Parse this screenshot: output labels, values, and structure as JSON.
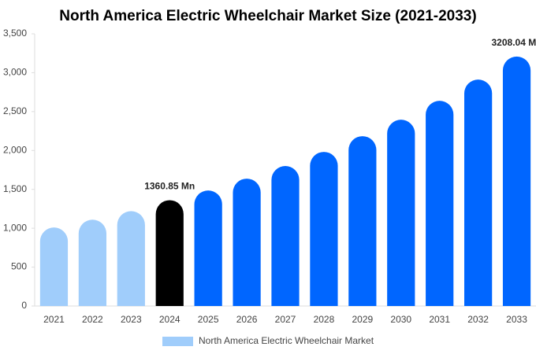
{
  "chart_data": {
    "type": "bar",
    "title": "North America Electric Wheelchair Market Size (2021-2033)",
    "categories": [
      "2021",
      "2022",
      "2023",
      "2024",
      "2025",
      "2026",
      "2027",
      "2028",
      "2029",
      "2030",
      "2031",
      "2032",
      "2033"
    ],
    "series": [
      {
        "name": "North America Electric Wheelchair Market",
        "color": "#a0cdfb",
        "values": [
          1010,
          1110,
          1220,
          1360.85,
          1486,
          1638,
          1800,
          1982,
          2184,
          2396,
          2639,
          2912,
          3208.04
        ],
        "value_labels": [
          null,
          null,
          null,
          "1360.85 Mn",
          null,
          null,
          null,
          null,
          null,
          null,
          null,
          null,
          "3208.04 Mn"
        ],
        "colors": [
          "#a0cdfb",
          "#a0cdfb",
          "#a0cdfb",
          "#000000",
          "#0066ff",
          "#0066ff",
          "#0066ff",
          "#0066ff",
          "#0066ff",
          "#0066ff",
          "#0066ff",
          "#0066ff",
          "#0066ff"
        ]
      }
    ],
    "ylim": [
      0,
      3500
    ],
    "yticks": [
      0,
      500,
      {
        "value": 1000,
        "label": "1,000"
      },
      {
        "value": 1500,
        "label": "1,500"
      },
      {
        "value": 2000,
        "label": "2,000"
      },
      {
        "value": 2500,
        "label": "2,500"
      },
      {
        "value": 3000,
        "label": "3,000"
      },
      {
        "value": 3500,
        "label": "3,500"
      }
    ],
    "grid": false
  }
}
